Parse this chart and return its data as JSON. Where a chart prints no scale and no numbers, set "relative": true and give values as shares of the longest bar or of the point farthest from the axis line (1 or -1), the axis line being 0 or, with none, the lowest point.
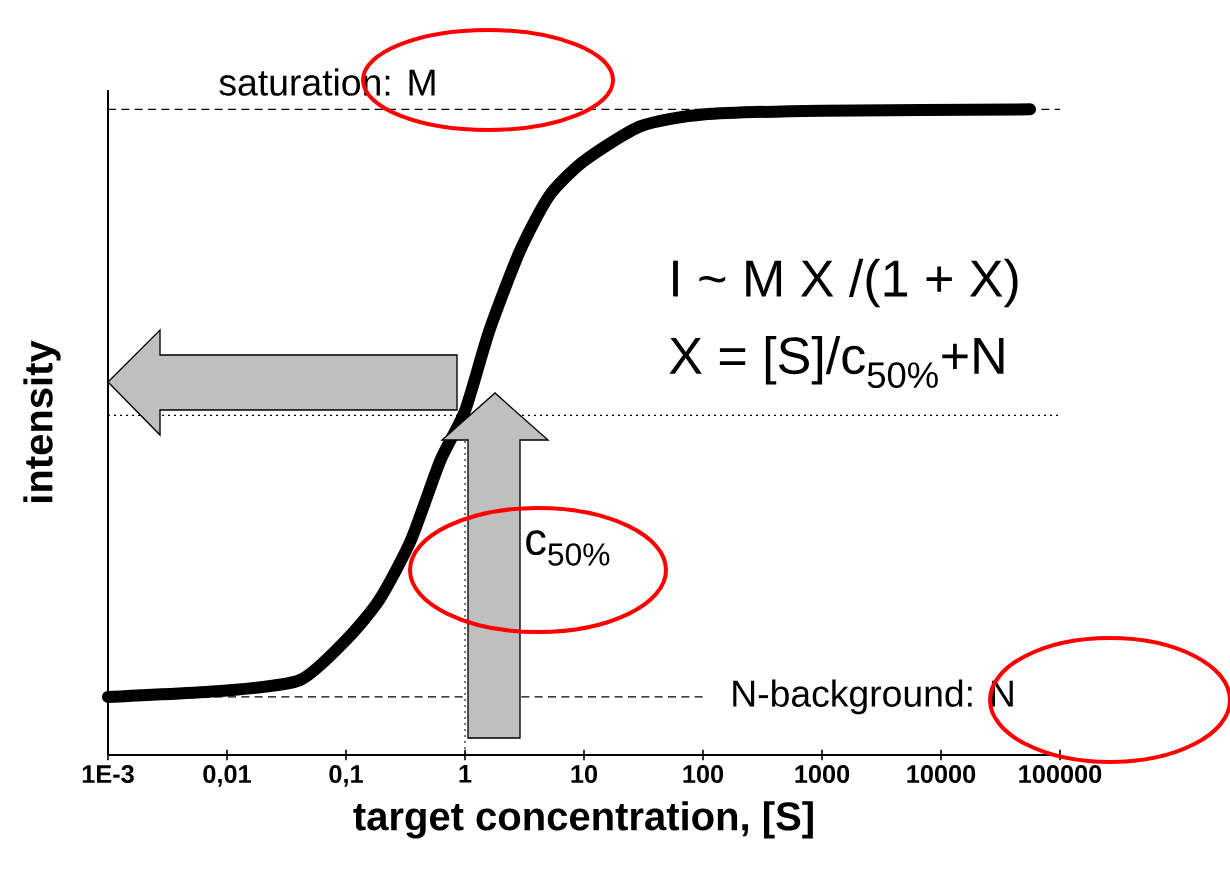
{
  "chart_data": {
    "type": "line",
    "xlabel": "target concentration, [S]",
    "ylabel": "intensity",
    "log": "x",
    "relative": true,
    "xlim": [
      0.001,
      100000
    ],
    "xticks": [
      {
        "value": 0.001,
        "label": "1E-3"
      },
      {
        "value": 0.01,
        "label": "0,01"
      },
      {
        "value": 0.1,
        "label": "0,1"
      },
      1,
      10,
      100,
      1000,
      10000,
      100000
    ],
    "x": [
      0.001,
      0.01,
      0.041,
      0.1,
      0.19,
      0.35,
      0.62,
      1,
      1.6,
      2.9,
      5.1,
      10,
      30,
      100,
      1000,
      56000
    ],
    "values": [
      0.09,
      0.1,
      0.116,
      0.178,
      0.24,
      0.332,
      0.456,
      0.533,
      0.657,
      0.781,
      0.866,
      0.92,
      0.974,
      0.992,
      0.998,
      1
    ],
    "color": "#000000",
    "ref_lines": [
      {
        "axis": "y",
        "value": 1,
        "label": "saturation: M",
        "line_style": "dashed"
      },
      {
        "axis": "y",
        "value": 0.09,
        "label": "N-background: N",
        "line_style": "dashed"
      },
      {
        "axis": "y",
        "value": 0.526,
        "line_style": "dotted"
      },
      {
        "axis": "x",
        "value": 1,
        "line_style": "dotted"
      }
    ],
    "annotations": [
      "I ~ M X /(1 + X)",
      "X = [S]/c$_{50%}$+N",
      "c$_{50%}$"
    ]
  }
}
